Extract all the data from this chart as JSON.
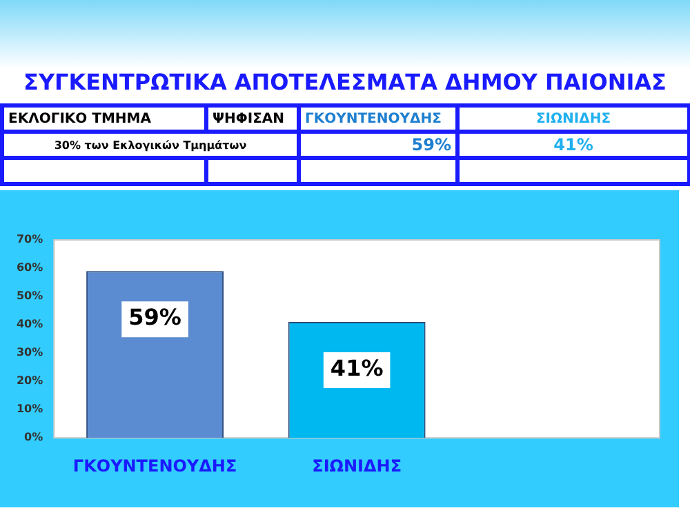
{
  "chart_data": {
    "type": "bar",
    "title": "ΣΥΓΚΕΝΤΡΩΤΙΚΑ   ΑΠΟΤΕΛΕΣΜΑΤΑ  ΔΗΜΟΥ ΠΑΙΟΝΙΑΣ",
    "categories": [
      "ΓΚΟΥΝΤΕΝΟΥΔΗΣ",
      "ΣΙΩΝΙΔΗΣ",
      null
    ],
    "values": [
      59,
      41,
      null
    ],
    "colors": [
      "#5b8bd0",
      "#00b8f0",
      "#00b8f0"
    ],
    "value_labels": [
      "59%",
      "41%",
      null
    ],
    "ylim": [
      0,
      70
    ],
    "yticks": [
      {
        "value": 0,
        "label": "0%"
      },
      {
        "value": 10,
        "label": "10%"
      },
      {
        "value": 20,
        "label": "20%"
      },
      {
        "value": 30,
        "label": "30%"
      },
      {
        "value": 40,
        "label": "40%"
      },
      {
        "value": 50,
        "label": "50%"
      },
      {
        "value": 60,
        "label": "60%"
      },
      {
        "value": 70,
        "label": "70%"
      }
    ],
    "grid": false,
    "legend": false,
    "annotations": [
      "ΕΚΛΟΓΙΚΟ  ΤΜΗΜΑ",
      "ΨΗΦΙΣΑΝ",
      "30% των Εκλογικών Τμημάτων"
    ]
  }
}
